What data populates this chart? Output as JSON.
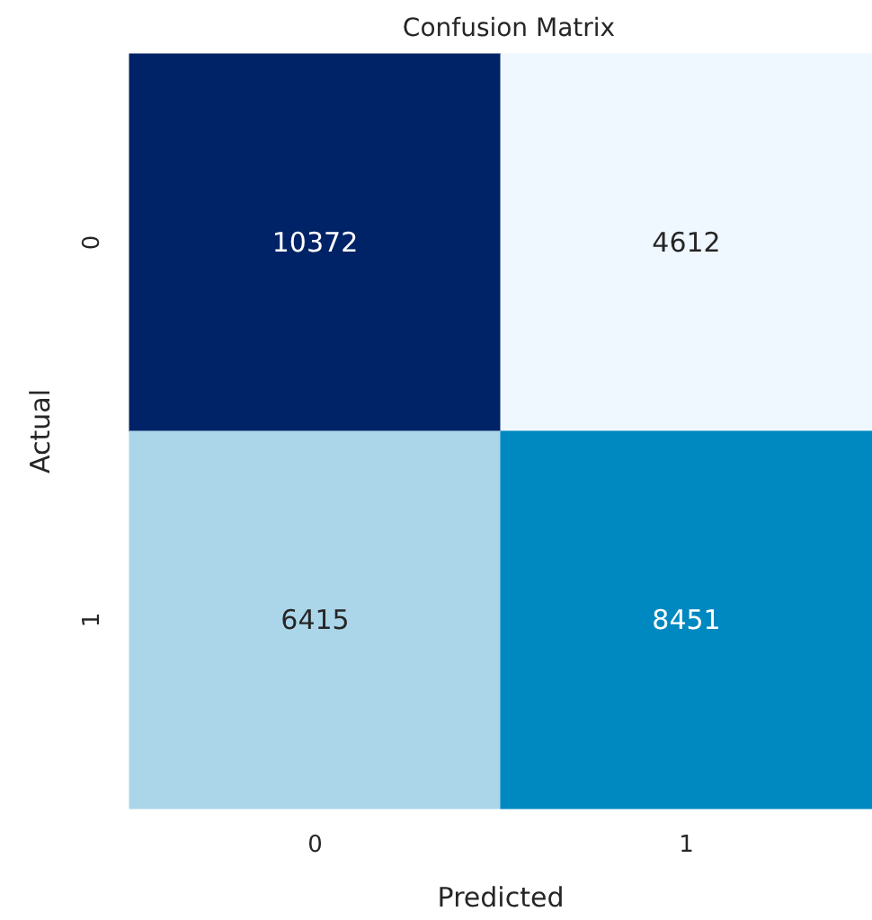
{
  "chart_data": {
    "type": "heatmap",
    "title": "Confusion Matrix",
    "xlabel": "Predicted",
    "ylabel": "Actual",
    "categories": [
      "0",
      "1"
    ],
    "y_categories": [
      "0",
      "1"
    ],
    "cells": [
      [
        10372,
        4612
      ],
      [
        6415,
        8451
      ]
    ],
    "data_labels": true
  }
}
